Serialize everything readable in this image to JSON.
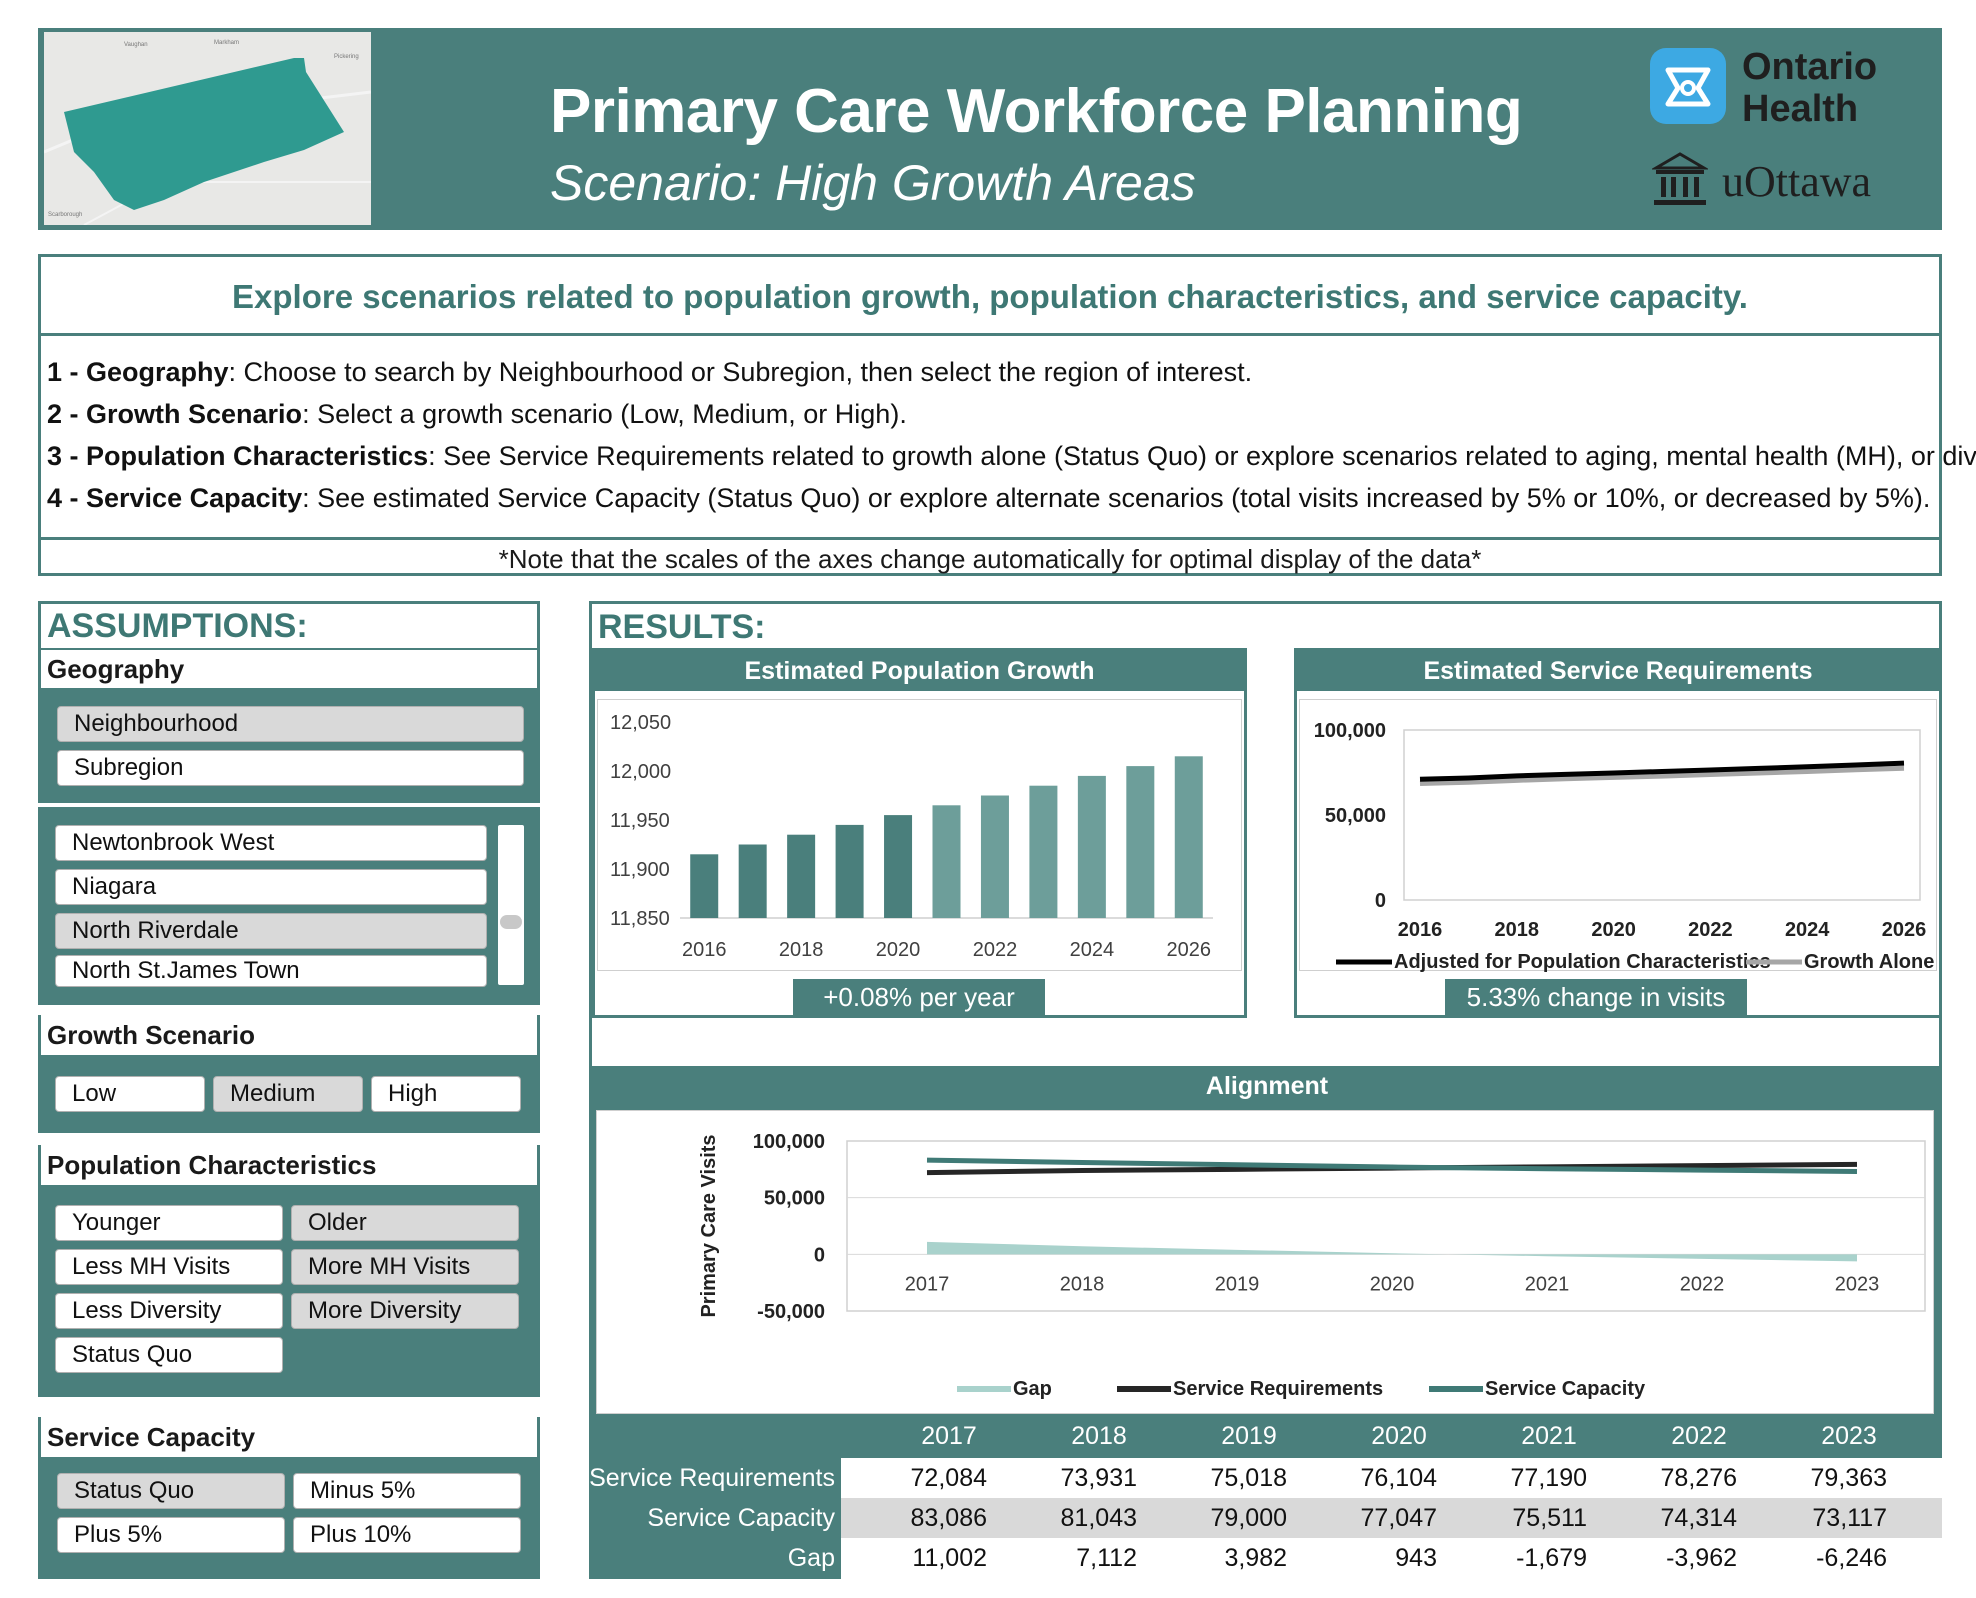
{
  "header": {
    "title": "Primary Care Workforce Planning",
    "subtitle": "Scenario: High Growth Areas",
    "logo1_line1": "Ontario",
    "logo1_line2": "Health",
    "logo2": "uOttawa",
    "map_labels": [
      "Vaughan",
      "Markham",
      "Pickering",
      "Scarborough"
    ]
  },
  "info": {
    "headline": "Explore scenarios related to population growth, population characteristics, and service capacity.",
    "steps": [
      {
        "label": "1 - Geography",
        "text": ": Choose to search by Neighbourhood or Subregion, then select the region of interest."
      },
      {
        "label": "2 - Growth Scenario",
        "text": ": Select a growth scenario (Low, Medium, or High)."
      },
      {
        "label": "3 - Population Characteristics",
        "text": ": See Service Requirements related to growth alone (Status Quo) or explore scenarios related to aging, mental health (MH), or diversity."
      },
      {
        "label": "4 - Service Capacity",
        "text": ": See estimated Service Capacity (Status Quo) or explore alternate scenarios (total visits increased by 5% or 10%, or decreased by 5%)."
      }
    ],
    "note": "*Note that the scales of the axes change automatically for optimal display of the data*"
  },
  "assumptions": {
    "title": "ASSUMPTIONS:",
    "geography": {
      "heading": "Geography",
      "options": [
        "Neighbourhood",
        "Subregion"
      ],
      "selected": "Neighbourhood"
    },
    "regions": {
      "items": [
        "Newtonbrook West",
        "Niagara",
        "North Riverdale",
        "North St.James Town"
      ],
      "selected": "North Riverdale"
    },
    "growth": {
      "heading": "Growth Scenario",
      "options": [
        "Low",
        "Medium",
        "High"
      ],
      "selected": "Medium"
    },
    "population": {
      "heading": "Population Characteristics",
      "options": [
        "Younger",
        "Older",
        "Less MH Visits",
        "More MH Visits",
        "Less Diversity",
        "More Diversity",
        "Status Quo"
      ],
      "selected": [
        "Older",
        "More MH Visits",
        "More Diversity"
      ]
    },
    "capacity": {
      "heading": "Service Capacity",
      "options": [
        "Status Quo",
        "Minus 5%",
        "Plus 5%",
        "Plus 10%"
      ],
      "selected": "Status Quo"
    }
  },
  "results": {
    "title": "RESULTS:",
    "pop_chart_title": "Estimated Population Growth",
    "pop_pill": "+0.08%  per year",
    "svc_chart_title": "Estimated Service Requirements",
    "svc_pill": "5.33%  change in visits",
    "align_title": "Alignment"
  },
  "chart_data": [
    {
      "type": "bar",
      "title": "Estimated Population Growth",
      "categories": [
        2016,
        2017,
        2018,
        2019,
        2020,
        2021,
        2022,
        2023,
        2024,
        2025,
        2026
      ],
      "values": [
        11915,
        11925,
        11935,
        11945,
        11955,
        11965,
        11975,
        11985,
        11995,
        12005,
        12015
      ],
      "ylim": [
        11850,
        12050
      ],
      "yticks": [
        "11,850",
        "11,900",
        "11,950",
        "12,000",
        "12,050"
      ],
      "xticks": [
        "2016",
        "2018",
        "2020",
        "2022",
        "2024",
        "2026"
      ],
      "colors": {
        "dark": "#4a7f7c",
        "light": "#6d9e9a"
      }
    },
    {
      "type": "line",
      "title": "Estimated Service Requirements",
      "x": [
        2016,
        2017,
        2018,
        2019,
        2020,
        2021,
        2022,
        2023,
        2024,
        2025,
        2026
      ],
      "series": [
        {
          "name": "Adjusted for Population Characteristics",
          "values": [
            71000,
            71800,
            73000,
            73900,
            74700,
            75600,
            76500,
            77400,
            78400,
            79400,
            80500
          ],
          "color": "#000000"
        },
        {
          "name": "Growth Alone",
          "values": [
            68500,
            69300,
            70400,
            71300,
            72100,
            72900,
            73800,
            74700,
            75600,
            76600,
            77500
          ],
          "color": "#a6a6a6"
        }
      ],
      "ylim": [
        0,
        100000
      ],
      "yticks": [
        "0",
        "50,000",
        "100,000"
      ],
      "xticks": [
        "2016",
        "2018",
        "2020",
        "2022",
        "2024",
        "2026"
      ]
    },
    {
      "type": "line",
      "title": "Alignment",
      "ylabel": "Primary Care Visits",
      "x": [
        2017,
        2018,
        2019,
        2020,
        2021,
        2022,
        2023
      ],
      "xticks": [
        "2017",
        "2018",
        "2019",
        "2020",
        "2021",
        "2022",
        "2023"
      ],
      "series": [
        {
          "name": "Gap",
          "values": [
            11002,
            7112,
            3982,
            943,
            -1679,
            -3962,
            -6246
          ],
          "color": "#a9d2cc",
          "style": "area"
        },
        {
          "name": "Service Requirements",
          "values": [
            72084,
            73931,
            75018,
            76104,
            77190,
            78276,
            79363
          ],
          "color": "#262626"
        },
        {
          "name": "Service Capacity",
          "values": [
            83086,
            81043,
            79000,
            77047,
            75511,
            74314,
            73117
          ],
          "color": "#3f7a76"
        }
      ],
      "ylim": [
        -50000,
        100000
      ],
      "yticks": [
        "100,000",
        "50,000",
        "0",
        "-50,000"
      ]
    }
  ],
  "table": {
    "years": [
      "2017",
      "2018",
      "2019",
      "2020",
      "2021",
      "2022",
      "2023"
    ],
    "rows": [
      {
        "label": "Service Requirements",
        "values": [
          "72,084",
          "73,931",
          "75,018",
          "76,104",
          "77,190",
          "78,276",
          "79,363"
        ]
      },
      {
        "label": "Service Capacity",
        "values": [
          "83,086",
          "81,043",
          "79,000",
          "77,047",
          "75,511",
          "74,314",
          "73,117"
        ]
      },
      {
        "label": "Gap",
        "values": [
          "11,002",
          "7,112",
          "3,982",
          "943",
          "-1,679",
          "-3,962",
          "-6,246"
        ]
      }
    ]
  }
}
